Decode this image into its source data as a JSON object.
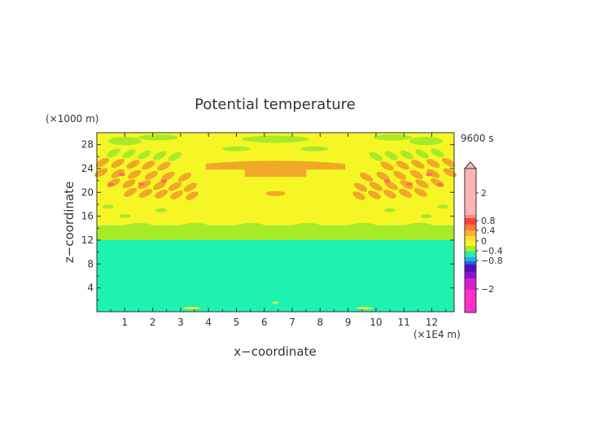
{
  "chart_data": {
    "type": "heatmap",
    "title": "Potential temperature",
    "time_label": "9600 s",
    "xlabel": "x−coordinate",
    "ylabel": "z−coordinate",
    "x_unit": "(×1E4 m)",
    "y_unit": "(×1000 m)",
    "x_ticks": [
      "1",
      "2",
      "3",
      "4",
      "5",
      "6",
      "7",
      "8",
      "9",
      "10",
      "11",
      "12"
    ],
    "y_ticks": [
      "4",
      "8",
      "12",
      "16",
      "20",
      "24",
      "28"
    ],
    "xlim": [
      0,
      12.8
    ],
    "ylim": [
      0,
      30
    ],
    "colorbar": {
      "tick_labels": [
        "2",
        "0.8",
        "0.4",
        "0",
        "−0.4",
        "−0.8",
        "−2"
      ],
      "tick_values": [
        2,
        0.8,
        0.4,
        0,
        -0.4,
        -0.8,
        -2
      ]
    },
    "field_bands": [
      {
        "z_from": 0,
        "z_to": 12,
        "value": -0.1,
        "color": "#1ef2b0"
      },
      {
        "z_from": 12,
        "z_to": 14.5,
        "value": 0.1,
        "color": "#a6ea28"
      },
      {
        "z_from": 14.5,
        "z_to": 30,
        "value": 0.3,
        "color": "#f6f626"
      }
    ],
    "colors": {
      "yellow": "#f6f626",
      "green": "#a6ea28",
      "cyan_green": "#1ef2b0",
      "orange": "#f0a828",
      "red": "#ff6a60",
      "pink": "#ffb4b4",
      "magenta": "#ff30c8"
    }
  }
}
